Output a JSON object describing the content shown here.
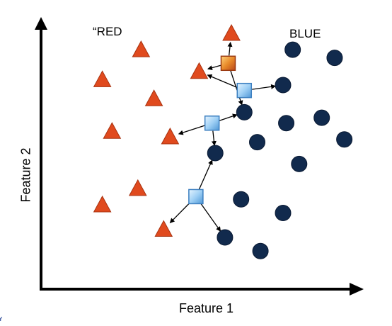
{
  "labels": {
    "class_red": "“RED",
    "class_blue": "BLUE",
    "x_axis": "Feature 1",
    "y_axis": "Feature 2",
    "corner_mark": "Y"
  },
  "colors": {
    "red_class": "#e04a1e",
    "blue_class": "#112a4d",
    "query_light": "#8fc6f0",
    "query_highlight": "#e07a20",
    "axis": "#000000"
  },
  "icons": {
    "red_point": "triangle",
    "blue_point": "circle",
    "query_point": "square"
  },
  "chart_data": {
    "type": "scatter",
    "xlabel": "Feature 1",
    "ylabel": "Feature 2",
    "xlim": [
      0,
      100
    ],
    "ylim": [
      0,
      100
    ],
    "grid": false,
    "legend": "none",
    "series": [
      {
        "name": "“RED",
        "marker": "triangle",
        "points": [
          [
            31,
            88
          ],
          [
            19,
            77
          ],
          [
            35,
            70
          ],
          [
            22,
            58
          ],
          [
            40,
            56
          ],
          [
            30,
            37
          ],
          [
            19,
            31
          ],
          [
            38,
            22
          ],
          [
            49,
            80
          ],
          [
            59,
            94
          ]
        ]
      },
      {
        "name": "BLUE",
        "marker": "circle",
        "points": [
          [
            78,
            88
          ],
          [
            91,
            85
          ],
          [
            75,
            75
          ],
          [
            63,
            65
          ],
          [
            76,
            61
          ],
          [
            87,
            63
          ],
          [
            94,
            55
          ],
          [
            67,
            54
          ],
          [
            54,
            50
          ],
          [
            80,
            46
          ],
          [
            62,
            33
          ],
          [
            75,
            28
          ],
          [
            57,
            19
          ],
          [
            68,
            14
          ]
        ]
      },
      {
        "marker": "square",
        "points": [
          [
            63,
            73
          ],
          [
            53,
            61
          ],
          [
            48,
            34
          ]
        ]
      },
      {
        "marker": "square-highlight",
        "points": [
          [
            58,
            83
          ]
        ]
      }
    ],
    "neighbor_links": [
      {
        "from": [
          58,
          83
        ],
        "to": [
          59,
          94
        ]
      },
      {
        "from": [
          58,
          83
        ],
        "to": [
          49,
          80
        ]
      },
      {
        "from": [
          58,
          83
        ],
        "to": [
          63,
          65
        ]
      },
      {
        "from": [
          63,
          73
        ],
        "to": [
          75,
          75
        ]
      },
      {
        "from": [
          63,
          73
        ],
        "to": [
          49,
          80
        ]
      },
      {
        "from": [
          53,
          61
        ],
        "to": [
          63,
          65
        ]
      },
      {
        "from": [
          53,
          61
        ],
        "to": [
          40,
          56
        ]
      },
      {
        "from": [
          53,
          61
        ],
        "to": [
          54,
          50
        ]
      },
      {
        "from": [
          48,
          34
        ],
        "to": [
          54,
          50
        ]
      },
      {
        "from": [
          48,
          34
        ],
        "to": [
          38,
          22
        ]
      },
      {
        "from": [
          48,
          34
        ],
        "to": [
          57,
          19
        ]
      }
    ]
  }
}
